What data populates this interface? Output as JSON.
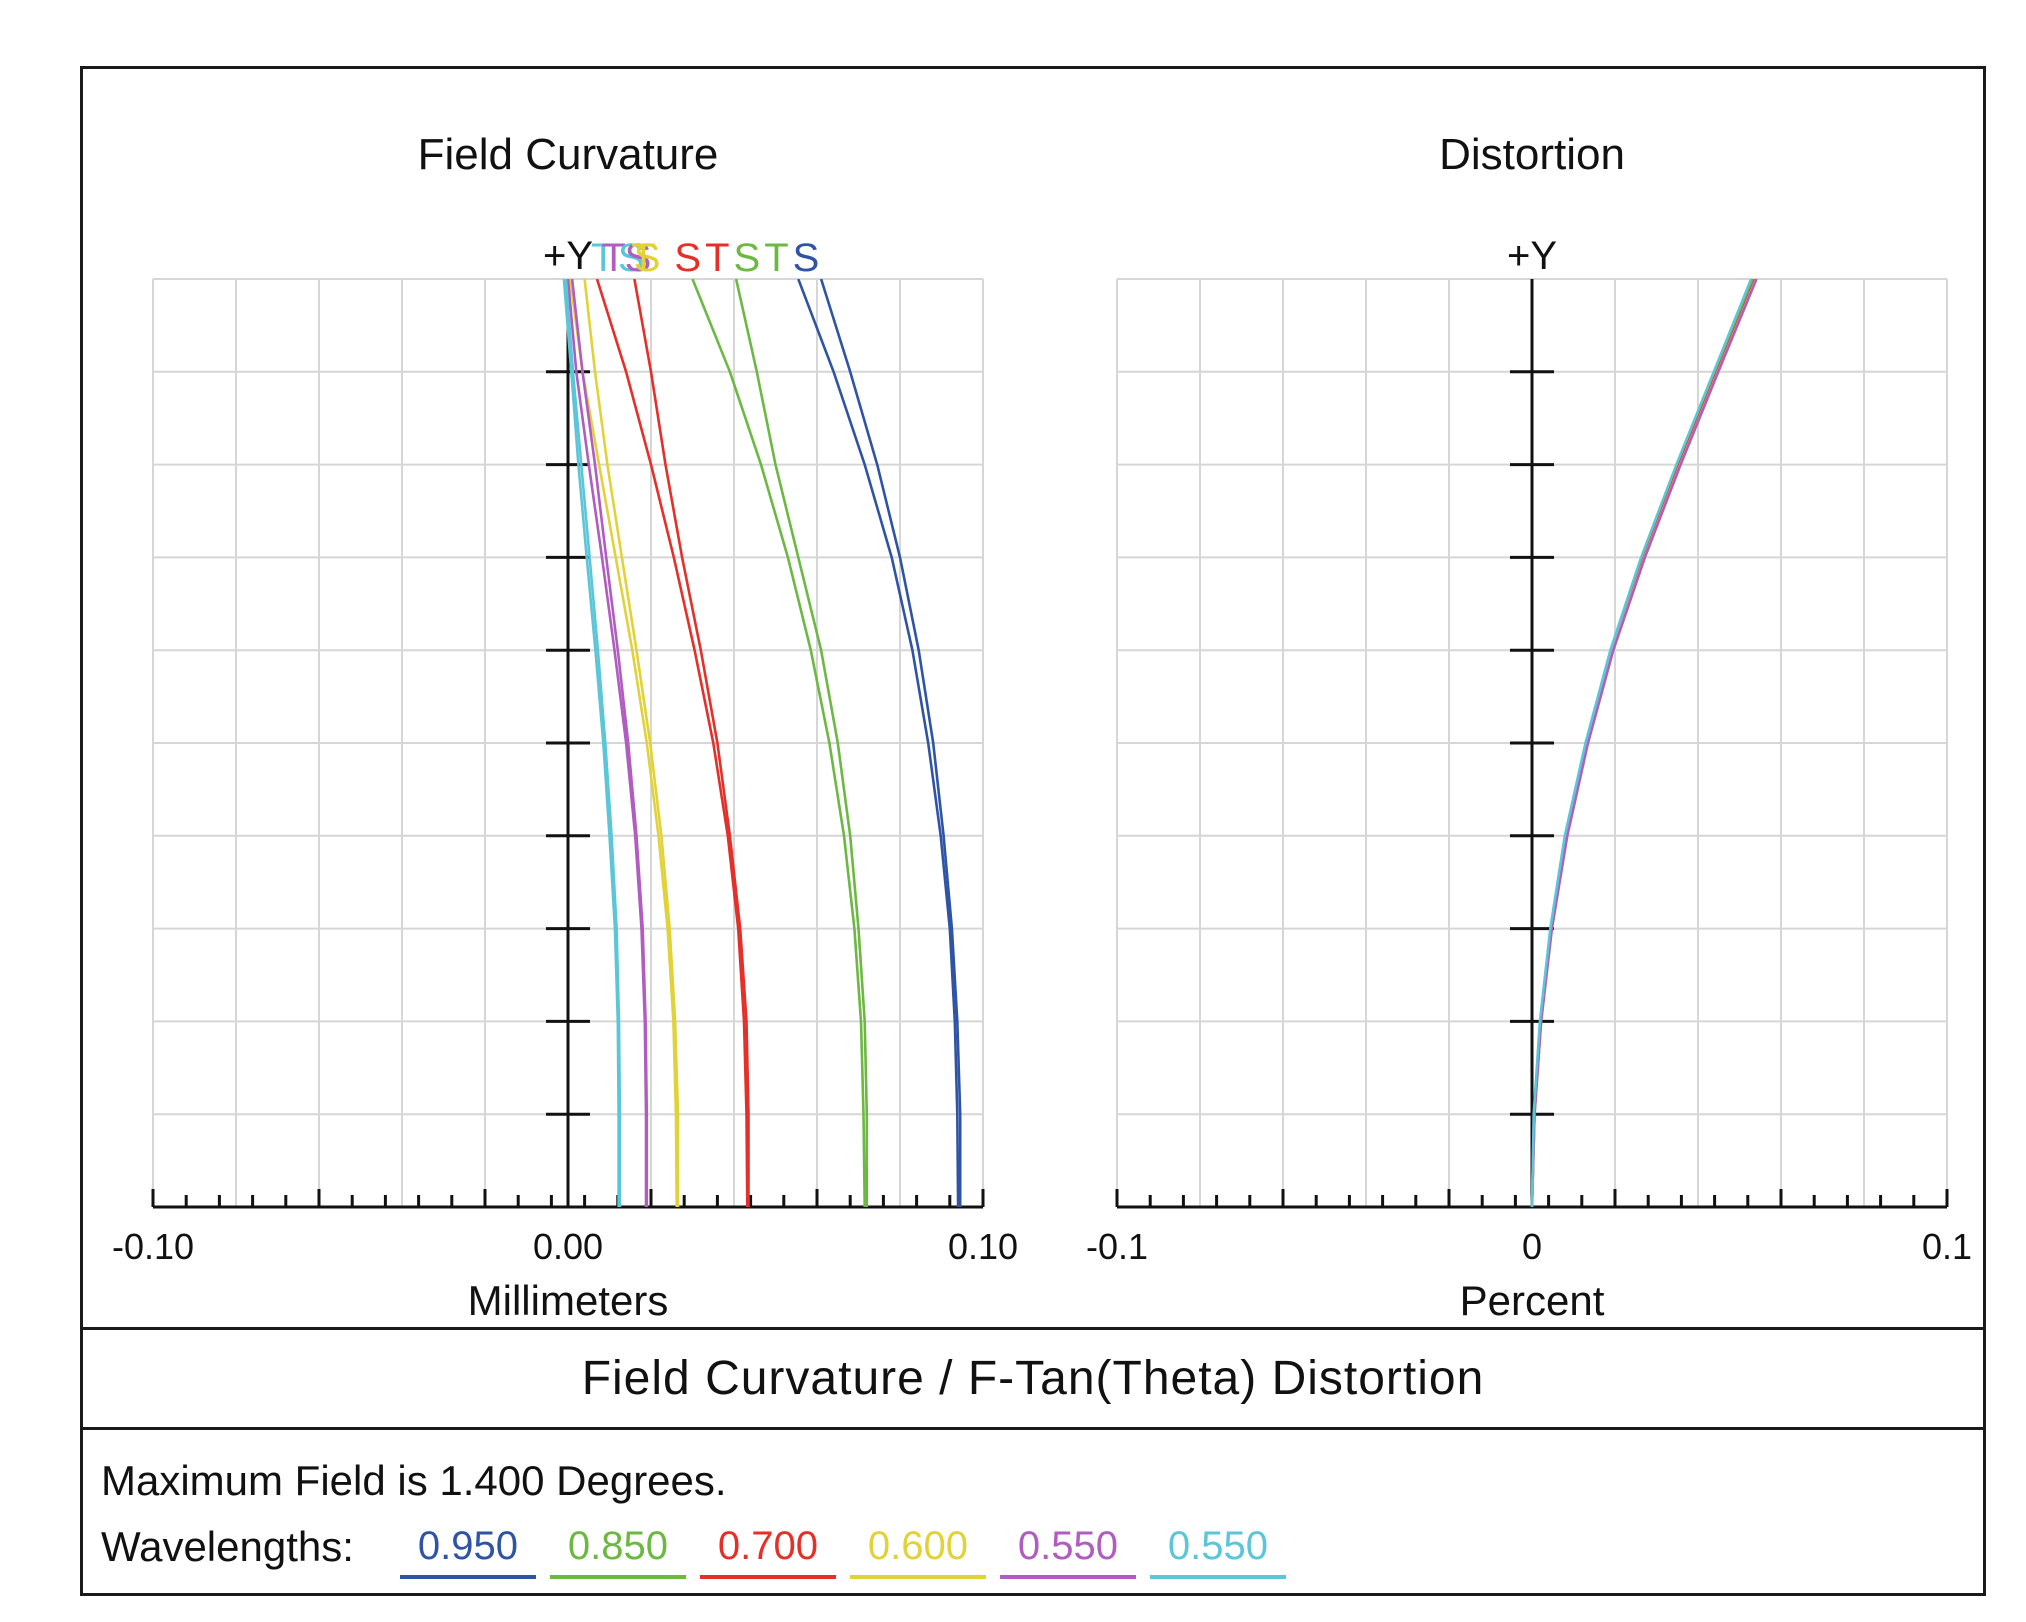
{
  "chart_data": [
    {
      "type": "line",
      "title": "Field Curvature",
      "xlabel": "Millimeters",
      "ylabel": "+Y",
      "xlim": [
        -0.1,
        0.1
      ],
      "ylim": [
        0,
        1.4
      ],
      "x_ticks": [
        "-0.10",
        "0.00",
        "0.10"
      ],
      "y_field_units": "degrees",
      "st_legend": [
        {
          "text": "T",
          "color": "#5bc6d8"
        },
        {
          "text": "T",
          "color": "#b05cc0"
        },
        {
          "text": "S",
          "color": "#5bc6d8"
        },
        {
          "text": "S",
          "color": "#b05cc0"
        },
        {
          "text": "T",
          "color": "#e2d23a"
        },
        {
          "text": "S",
          "color": "#e2d23a"
        },
        {
          "text": "S",
          "color": "#e5302a"
        },
        {
          "text": "T",
          "color": "#e5302a"
        },
        {
          "text": "S",
          "color": "#6cb843"
        },
        {
          "text": "T",
          "color": "#6cb843"
        },
        {
          "text": "S",
          "color": "#2f54a6"
        }
      ],
      "series": [
        {
          "name": "0.950 S",
          "color": "#2f54a6",
          "y": [
            0,
            0.14,
            0.28,
            0.42,
            0.56,
            0.7,
            0.84,
            0.98,
            1.12,
            1.26,
            1.4
          ],
          "x": [
            0.0945,
            0.0945,
            0.0938,
            0.0925,
            0.0905,
            0.088,
            0.0845,
            0.08,
            0.0745,
            0.068,
            0.061
          ]
        },
        {
          "name": "0.950 T",
          "color": "#2f54a6",
          "y": [
            0,
            0.14,
            0.28,
            0.42,
            0.56,
            0.7,
            0.84,
            0.98,
            1.12,
            1.26,
            1.4
          ],
          "x": [
            0.094,
            0.0938,
            0.0932,
            0.092,
            0.0898,
            0.0868,
            0.083,
            0.078,
            0.0715,
            0.064,
            0.0555
          ]
        },
        {
          "name": "0.850 S",
          "color": "#6cb843",
          "y": [
            0,
            0.14,
            0.28,
            0.42,
            0.56,
            0.7,
            0.84,
            0.98,
            1.12,
            1.26,
            1.4
          ],
          "x": [
            0.072,
            0.072,
            0.0715,
            0.07,
            0.068,
            0.065,
            0.061,
            0.0555,
            0.05,
            0.0455,
            0.0405
          ]
        },
        {
          "name": "0.850 T",
          "color": "#6cb843",
          "y": [
            0,
            0.14,
            0.28,
            0.42,
            0.56,
            0.7,
            0.84,
            0.98,
            1.12,
            1.26,
            1.4
          ],
          "x": [
            0.0715,
            0.0712,
            0.0706,
            0.069,
            0.0665,
            0.063,
            0.0585,
            0.053,
            0.0465,
            0.039,
            0.03
          ]
        },
        {
          "name": "0.700 S",
          "color": "#e5302a",
          "y": [
            0,
            0.14,
            0.28,
            0.42,
            0.56,
            0.7,
            0.84,
            0.98,
            1.12,
            1.26,
            1.4
          ],
          "x": [
            0.0435,
            0.0435,
            0.043,
            0.0415,
            0.039,
            0.036,
            0.032,
            0.0275,
            0.0235,
            0.02,
            0.016
          ]
        },
        {
          "name": "0.700 T",
          "color": "#e5302a",
          "y": [
            0,
            0.14,
            0.28,
            0.42,
            0.56,
            0.7,
            0.84,
            0.98,
            1.12,
            1.26,
            1.4
          ],
          "x": [
            0.0432,
            0.043,
            0.0424,
            0.041,
            0.0385,
            0.035,
            0.0305,
            0.0255,
            0.02,
            0.014,
            0.007
          ]
        },
        {
          "name": "0.600 S",
          "color": "#e2d23a",
          "y": [
            0,
            0.14,
            0.28,
            0.42,
            0.56,
            0.7,
            0.84,
            0.98,
            1.12,
            1.26,
            1.4
          ],
          "x": [
            0.0265,
            0.0265,
            0.0258,
            0.0245,
            0.0225,
            0.0198,
            0.0165,
            0.013,
            0.0095,
            0.0065,
            0.004
          ]
        },
        {
          "name": "0.600 T",
          "color": "#e2d23a",
          "y": [
            0,
            0.14,
            0.28,
            0.42,
            0.56,
            0.7,
            0.84,
            0.98,
            1.12,
            1.26,
            1.4
          ],
          "x": [
            0.0262,
            0.026,
            0.0254,
            0.024,
            0.0218,
            0.019,
            0.0155,
            0.0115,
            0.0075,
            0.0035,
            0.0005
          ]
        },
        {
          "name": "0.550 S",
          "color": "#b05cc0",
          "y": [
            0,
            0.14,
            0.28,
            0.42,
            0.56,
            0.7,
            0.84,
            0.98,
            1.12,
            1.26,
            1.4
          ],
          "x": [
            0.019,
            0.019,
            0.0187,
            0.018,
            0.0165,
            0.0145,
            0.012,
            0.0092,
            0.0065,
            0.0035,
            0.001
          ]
        },
        {
          "name": "0.550 T",
          "color": "#b05cc0",
          "y": [
            0,
            0.14,
            0.28,
            0.42,
            0.56,
            0.7,
            0.84,
            0.98,
            1.12,
            1.26,
            1.4
          ],
          "x": [
            0.0188,
            0.0188,
            0.0185,
            0.0177,
            0.0162,
            0.014,
            0.0112,
            0.0082,
            0.005,
            0.002,
            0.0
          ]
        },
        {
          "name": "0.550 S",
          "color": "#5bc6d8",
          "y": [
            0,
            0.14,
            0.28,
            0.42,
            0.56,
            0.7,
            0.84,
            0.98,
            1.12,
            1.26,
            1.4
          ],
          "x": [
            0.0125,
            0.0125,
            0.0123,
            0.0117,
            0.0105,
            0.009,
            0.0072,
            0.0052,
            0.0032,
            0.0012,
            -0.0005
          ]
        },
        {
          "name": "0.550 T",
          "color": "#5bc6d8",
          "y": [
            0,
            0.14,
            0.28,
            0.42,
            0.56,
            0.7,
            0.84,
            0.98,
            1.12,
            1.26,
            1.4
          ],
          "x": [
            0.0122,
            0.0122,
            0.012,
            0.0113,
            0.01,
            0.0085,
            0.0066,
            0.0045,
            0.0025,
            0.0008,
            -0.001
          ]
        }
      ]
    },
    {
      "type": "line",
      "title": "Distortion",
      "xlabel": "Percent",
      "ylabel": "+Y",
      "xlim": [
        -0.1,
        0.1
      ],
      "ylim": [
        0,
        1.4
      ],
      "x_ticks": [
        "-0.1",
        "0",
        "0.1"
      ],
      "series": [
        {
          "name": "0.950",
          "color": "#2f54a6",
          "y": [
            0,
            0.14,
            0.28,
            0.42,
            0.56,
            0.7,
            0.84,
            0.98,
            1.12,
            1.26,
            1.4
          ],
          "x": [
            0,
            0.0005,
            0.002,
            0.0045,
            0.008,
            0.013,
            0.019,
            0.0265,
            0.035,
            0.044,
            0.053
          ]
        },
        {
          "name": "0.850",
          "color": "#6cb843",
          "y": [
            0,
            0.14,
            0.28,
            0.42,
            0.56,
            0.7,
            0.84,
            0.98,
            1.12,
            1.26,
            1.4
          ],
          "x": [
            0,
            0.0005,
            0.0021,
            0.0046,
            0.0082,
            0.0132,
            0.0192,
            0.0268,
            0.0352,
            0.0443,
            0.0535
          ]
        },
        {
          "name": "0.700",
          "color": "#e5302a",
          "y": [
            0,
            0.14,
            0.28,
            0.42,
            0.56,
            0.7,
            0.84,
            0.98,
            1.12,
            1.26,
            1.4
          ],
          "x": [
            0,
            0.0006,
            0.0022,
            0.0047,
            0.0083,
            0.0133,
            0.0194,
            0.027,
            0.0355,
            0.0446,
            0.0538
          ]
        },
        {
          "name": "0.600",
          "color": "#e2d23a",
          "y": [
            0,
            0.14,
            0.28,
            0.42,
            0.56,
            0.7,
            0.84,
            0.98,
            1.12,
            1.26,
            1.4
          ],
          "x": [
            0,
            0.0006,
            0.0022,
            0.0048,
            0.0084,
            0.0134,
            0.0195,
            0.0271,
            0.0357,
            0.0448,
            0.054
          ]
        },
        {
          "name": "0.550",
          "color": "#b05cc0",
          "y": [
            0,
            0.14,
            0.28,
            0.42,
            0.56,
            0.7,
            0.84,
            0.98,
            1.12,
            1.26,
            1.4
          ],
          "x": [
            0,
            0.0006,
            0.0022,
            0.0048,
            0.0085,
            0.0135,
            0.0196,
            0.0272,
            0.0358,
            0.0449,
            0.0541
          ]
        },
        {
          "name": "0.550",
          "color": "#5bc6d8",
          "y": [
            0,
            0.14,
            0.28,
            0.42,
            0.56,
            0.7,
            0.84,
            0.98,
            1.12,
            1.26,
            1.4
          ],
          "x": [
            0,
            0.0004,
            0.0019,
            0.0044,
            0.0079,
            0.0129,
            0.0189,
            0.0263,
            0.0348,
            0.0438,
            0.0528
          ]
        }
      ]
    }
  ],
  "figure_title": "Field Curvature / F-Tan(Theta) Distortion",
  "max_field_text": "Maximum Field is 1.400 Degrees.",
  "wavelengths_label": "Wavelengths:",
  "wavelengths": [
    {
      "value": "0.950",
      "color": "#2f54a6"
    },
    {
      "value": "0.850",
      "color": "#6cb843"
    },
    {
      "value": "0.700",
      "color": "#e5302a"
    },
    {
      "value": "0.600",
      "color": "#e2d23a"
    },
    {
      "value": "0.550",
      "color": "#b05cc0"
    },
    {
      "value": "0.550",
      "color": "#5bc6d8"
    }
  ]
}
